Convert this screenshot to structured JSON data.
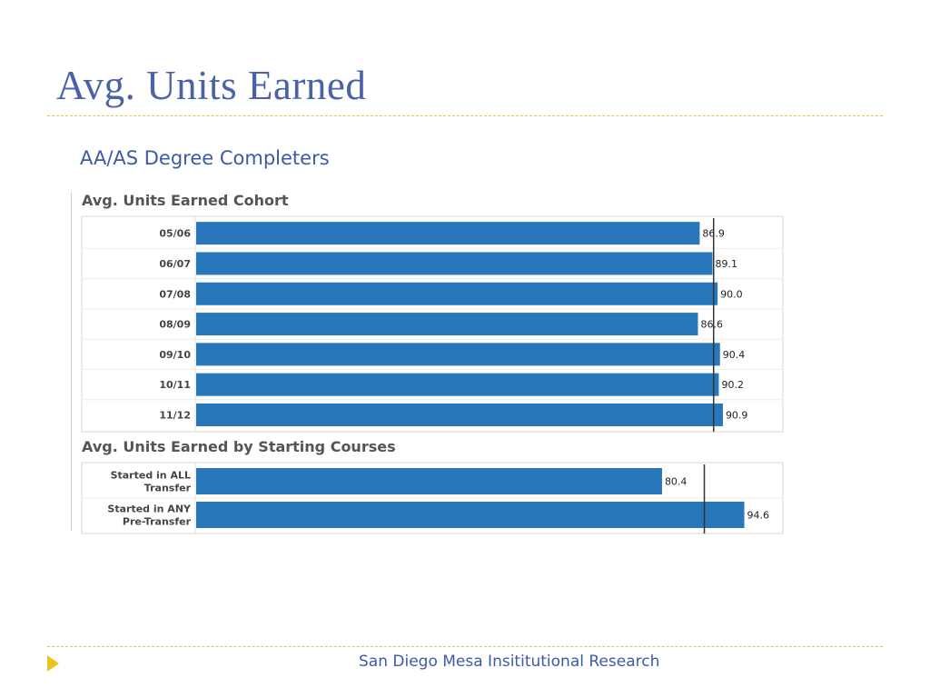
{
  "slide": {
    "title": "Avg. Units Earned",
    "subtitle": "AA/AS Degree Completers",
    "footer": "San Diego Mesa Insititutional Research"
  },
  "colors": {
    "bar": "#2777ba",
    "title": "#4a63a8",
    "rule": "#e8c34a",
    "marker": "#e8c51a"
  },
  "chart_data": [
    {
      "type": "bar",
      "orientation": "horizontal",
      "title": "Avg. Units Earned Cohort",
      "categories": [
        "05/06",
        "06/07",
        "07/08",
        "08/09",
        "09/10",
        "10/11",
        "11/12"
      ],
      "values": [
        86.9,
        89.1,
        90.0,
        86.6,
        90.4,
        90.2,
        90.9
      ],
      "data_labels": [
        "86.9",
        "89.1",
        "90.0",
        "86.6",
        "90.4",
        "90.2",
        "90.9"
      ],
      "reference_line": 89.3,
      "xlim": [
        0,
        100
      ],
      "xlabel": "",
      "ylabel": ""
    },
    {
      "type": "bar",
      "orientation": "horizontal",
      "title": "Avg. Units Earned by Starting Courses",
      "categories": [
        [
          "Started in ALL",
          "Transfer"
        ],
        [
          "Started in ANY",
          "Pre-Transfer"
        ]
      ],
      "values": [
        80.4,
        94.6
      ],
      "data_labels": [
        "80.4",
        "94.6"
      ],
      "reference_line": 87.7,
      "xlim": [
        0,
        100
      ],
      "xlabel": "",
      "ylabel": ""
    }
  ]
}
